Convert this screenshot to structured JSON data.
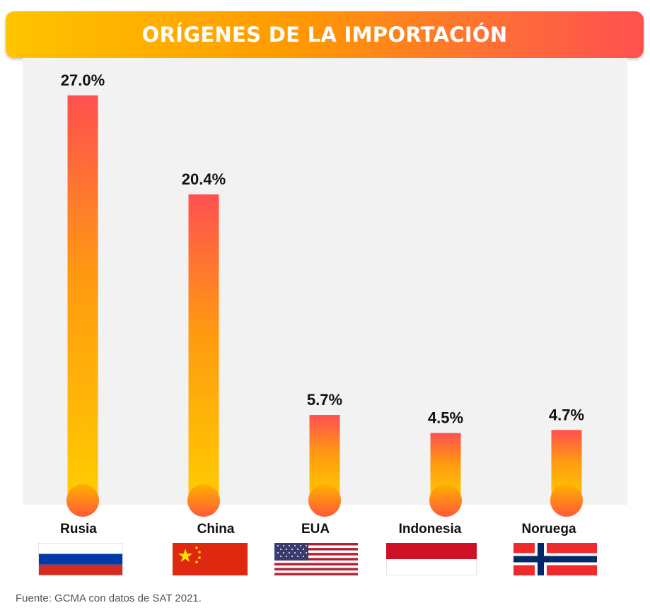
{
  "header": {
    "title": "ORÍGENES DE LA IMPORTACIÓN"
  },
  "chart_data": {
    "type": "bar",
    "categories": [
      "Rusia",
      "China",
      "EUA",
      "Indonesia",
      "Noruega"
    ],
    "values": [
      27.0,
      20.4,
      5.7,
      4.5,
      4.7
    ],
    "value_labels": [
      "27.0%",
      "20.4%",
      "5.7%",
      "4.5%",
      "4.7%"
    ],
    "unit": "%",
    "title": "ORÍGENES DE LA IMPORTACIÓN",
    "xlabel": "",
    "ylabel": "",
    "ylim": [
      0,
      27
    ],
    "grid": false,
    "legend": "none",
    "colors": {
      "bar_top": "#ff5050",
      "bar_bottom": "#ffcc00",
      "label": "#111111"
    }
  },
  "flags": [
    {
      "country": "Rusia",
      "icon": "russia-flag-icon"
    },
    {
      "country": "China",
      "icon": "china-flag-icon"
    },
    {
      "country": "EUA",
      "icon": "usa-flag-icon"
    },
    {
      "country": "Indonesia",
      "icon": "indonesia-flag-icon"
    },
    {
      "country": "Noruega",
      "icon": "norway-flag-icon"
    }
  ],
  "footer": {
    "source": "Fuente: GCMA con datos de SAT 2021."
  }
}
